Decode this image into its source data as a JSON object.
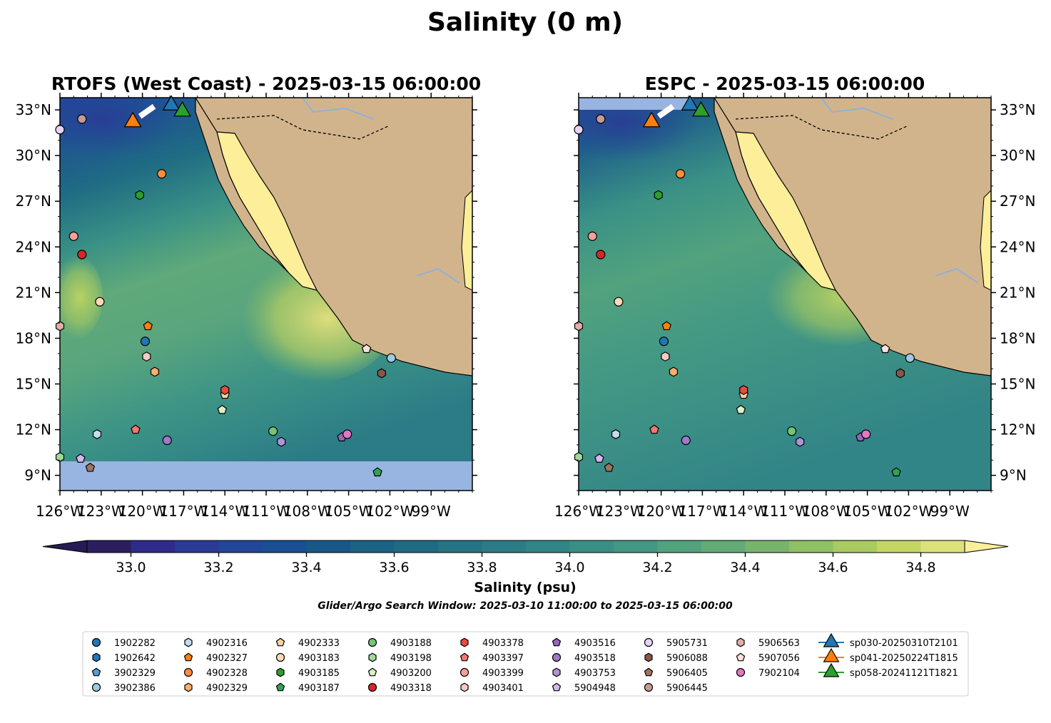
{
  "title": "Salinity (0 m)",
  "panels": [
    {
      "id": "rtofs",
      "title": "RTOFS (West Coast) - 2025-03-15 06:00:00"
    },
    {
      "id": "espc",
      "title": "ESPC - 2025-03-15 06:00:00"
    }
  ],
  "map_extent": {
    "lon": [
      -126,
      -96
    ],
    "lat": [
      8,
      33.8
    ]
  },
  "lat_ticks": [
    {
      "value": 33,
      "label": "33°N"
    },
    {
      "value": 30,
      "label": "30°N"
    },
    {
      "value": 27,
      "label": "27°N"
    },
    {
      "value": 24,
      "label": "24°N"
    },
    {
      "value": 21,
      "label": "21°N"
    },
    {
      "value": 18,
      "label": "18°N"
    },
    {
      "value": 15,
      "label": "15°N"
    },
    {
      "value": 12,
      "label": "12°N"
    },
    {
      "value": 9,
      "label": "9°N"
    }
  ],
  "lon_ticks": [
    {
      "value": -126,
      "label": "126°W"
    },
    {
      "value": -123,
      "label": "123°W"
    },
    {
      "value": -120,
      "label": "120°W"
    },
    {
      "value": -117,
      "label": "117°W"
    },
    {
      "value": -114,
      "label": "114°W"
    },
    {
      "value": -111,
      "label": "111°W"
    },
    {
      "value": -108,
      "label": "108°W"
    },
    {
      "value": -105,
      "label": "105°W"
    },
    {
      "value": -102,
      "label": "102°W"
    },
    {
      "value": -99,
      "label": "99°W"
    }
  ],
  "colorbar": {
    "label": "Salinity (psu)",
    "min": 32.9,
    "max": 34.9,
    "ticks": [
      {
        "value": 33.0,
        "label": "33.0"
      },
      {
        "value": 33.2,
        "label": "33.2"
      },
      {
        "value": 33.4,
        "label": "33.4"
      },
      {
        "value": 33.6,
        "label": "33.6"
      },
      {
        "value": 33.8,
        "label": "33.8"
      },
      {
        "value": 34.0,
        "label": "34.0"
      },
      {
        "value": 34.2,
        "label": "34.2"
      },
      {
        "value": 34.4,
        "label": "34.4"
      },
      {
        "value": 34.6,
        "label": "34.6"
      },
      {
        "value": 34.8,
        "label": "34.8"
      }
    ],
    "colors": [
      "#2c1e5e",
      "#2e2b8a",
      "#2b3a94",
      "#21469a",
      "#194f93",
      "#175889",
      "#1a6385",
      "#1f6b84",
      "#247485",
      "#2b7c86",
      "#328586",
      "#398f86",
      "#439884",
      "#52a27e",
      "#62ab77",
      "#77b56c",
      "#8fc064",
      "#a9cb5f",
      "#c4d661",
      "#dce27a"
    ],
    "under_color": "#261b52",
    "over_color": "#fcee9a"
  },
  "search_window": "Glider/Argo Search Window: 2025-03-10 11:00:00 to 2025-03-15 06:00:00",
  "chart_data": {
    "type": "scatter",
    "variable": "Salinity (psu)",
    "depth": "0 m",
    "series": [
      {
        "name": "1902282",
        "marker": "circle",
        "color": "#1f77b4",
        "lon": -119.8,
        "lat": 17.8
      },
      {
        "name": "1902642",
        "marker": "hexagon",
        "color": "#1f77b4",
        "lon": null,
        "lat": null
      },
      {
        "name": "3902329",
        "marker": "pentagon",
        "color": "#5b9bd5",
        "lon": null,
        "lat": null
      },
      {
        "name": "3902386",
        "marker": "circle",
        "color": "#9ecae1",
        "lon": -101.9,
        "lat": 16.7
      },
      {
        "name": "4902316",
        "marker": "hexagon",
        "color": "#c6dbef",
        "lon": -123.3,
        "lat": 11.7
      },
      {
        "name": "4902327",
        "marker": "pentagon",
        "color": "#ff7f0e",
        "lon": -119.6,
        "lat": 18.8
      },
      {
        "name": "4902328",
        "marker": "circle",
        "color": "#fd8d3c",
        "lon": -118.6,
        "lat": 28.8
      },
      {
        "name": "4902329",
        "marker": "hexagon",
        "color": "#fdae6b",
        "lon": -119.1,
        "lat": 15.8
      },
      {
        "name": "4902333",
        "marker": "pentagon",
        "color": "#fdd0a2",
        "lon": -114.0,
        "lat": 14.3
      },
      {
        "name": "4903183",
        "marker": "circle",
        "color": "#fdd9b5",
        "lon": -123.1,
        "lat": 20.4
      },
      {
        "name": "4903185",
        "marker": "hexagon",
        "color": "#2ca02c",
        "lon": -120.2,
        "lat": 27.4
      },
      {
        "name": "4903187",
        "marker": "pentagon",
        "color": "#31a354",
        "lon": -102.9,
        "lat": 9.2
      },
      {
        "name": "4903188",
        "marker": "circle",
        "color": "#74c476",
        "lon": -110.5,
        "lat": 11.9
      },
      {
        "name": "4903198",
        "marker": "hexagon",
        "color": "#a1d99b",
        "lon": -126.0,
        "lat": 10.2
      },
      {
        "name": "4903200",
        "marker": "pentagon",
        "color": "#d9f0c8",
        "lon": -114.2,
        "lat": 13.3
      },
      {
        "name": "4903318",
        "marker": "circle",
        "color": "#d62728",
        "lon": -124.4,
        "lat": 23.5
      },
      {
        "name": "4903378",
        "marker": "hexagon",
        "color": "#e74c3c",
        "lon": -114.0,
        "lat": 14.6
      },
      {
        "name": "4903397",
        "marker": "pentagon",
        "color": "#f07870",
        "lon": -120.5,
        "lat": 12.0
      },
      {
        "name": "4903399",
        "marker": "circle",
        "color": "#f4a09a",
        "lon": -125.0,
        "lat": 24.7
      },
      {
        "name": "4903401",
        "marker": "hexagon",
        "color": "#fbc9c4",
        "lon": -119.7,
        "lat": 16.8
      },
      {
        "name": "4903516",
        "marker": "pentagon",
        "color": "#9467bd",
        "lon": -105.5,
        "lat": 11.5
      },
      {
        "name": "4903518",
        "marker": "circle",
        "color": "#9e7ac8",
        "lon": -118.2,
        "lat": 11.3
      },
      {
        "name": "4903753",
        "marker": "hexagon",
        "color": "#b294d6",
        "lon": -109.9,
        "lat": 11.2
      },
      {
        "name": "5904948",
        "marker": "pentagon",
        "color": "#d4b9f0",
        "lon": -124.5,
        "lat": 10.1
      },
      {
        "name": "5905731",
        "marker": "circle",
        "color": "#e6d4f5",
        "lon": -126.0,
        "lat": 31.7
      },
      {
        "name": "5906088",
        "marker": "hexagon",
        "color": "#8c564b",
        "lon": -102.6,
        "lat": 15.7
      },
      {
        "name": "5906405",
        "marker": "pentagon",
        "color": "#a0725f",
        "lon": -123.8,
        "lat": 9.5
      },
      {
        "name": "5906445",
        "marker": "circle",
        "color": "#c49c94",
        "lon": -124.4,
        "lat": 32.4
      },
      {
        "name": "5906563",
        "marker": "hexagon",
        "color": "#e0b0a8",
        "lon": -126.0,
        "lat": 18.8
      },
      {
        "name": "5907056",
        "marker": "pentagon",
        "color": "#fde0dd",
        "lon": -103.7,
        "lat": 17.3
      },
      {
        "name": "7902104",
        "marker": "circle",
        "color": "#e377c2",
        "lon": -105.1,
        "lat": 11.7
      },
      {
        "name": "sp030-20250310T2101",
        "marker": "triangle",
        "color": "#1f77b4",
        "lon": -117.9,
        "lat": 33.3,
        "type": "glider"
      },
      {
        "name": "sp041-20250224T1815",
        "marker": "triangle",
        "color": "#ff7f0e",
        "lon": -120.7,
        "lat": 32.2,
        "type": "glider"
      },
      {
        "name": "sp058-20241121T1821",
        "marker": "triangle",
        "color": "#2ca02c",
        "lon": -117.1,
        "lat": 32.9,
        "type": "glider"
      }
    ]
  }
}
